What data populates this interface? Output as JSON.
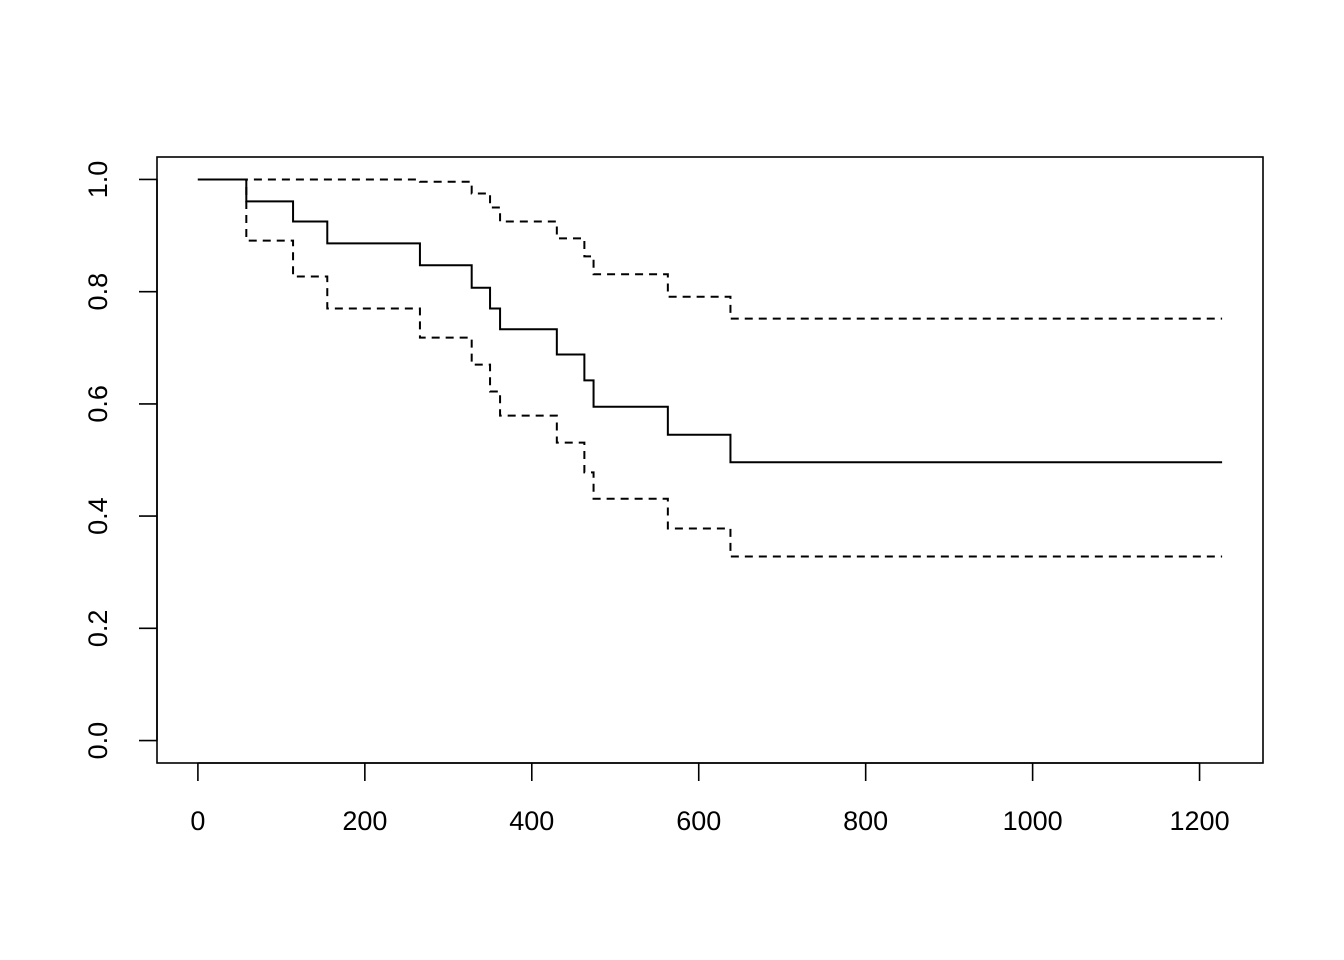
{
  "chart_data": {
    "type": "step",
    "x": [
      0,
      58,
      114,
      155,
      266,
      328,
      350,
      362,
      430,
      463,
      474,
      563,
      638,
      1227
    ],
    "series": [
      {
        "color": "#000000",
        "dashed": false,
        "values": [
          1,
          0.961,
          0.925,
          0.886,
          0.847,
          0.807,
          0.77,
          0.733,
          0.688,
          0.642,
          0.595,
          0.545,
          0.496,
          0.496
        ]
      },
      {
        "color": "#000000",
        "dashed": true,
        "values": [
          1,
          0.891,
          0.827,
          0.77,
          0.718,
          0.67,
          0.622,
          0.579,
          0.531,
          0.478,
          0.431,
          0.378,
          0.328,
          0.328
        ]
      },
      {
        "color": "#000000",
        "dashed": true,
        "values": [
          1,
          1,
          1,
          1,
          0.996,
          0.975,
          0.95,
          0.925,
          0.895,
          0.863,
          0.831,
          0.791,
          0.752,
          0.752
        ]
      }
    ],
    "xlim": [
      -49,
      1276
    ],
    "ylim": [
      -0.04,
      1.04
    ],
    "xticks": [
      0,
      200,
      400,
      600,
      800,
      1000,
      1200
    ],
    "yticks": [
      {
        "value": 0,
        "label": "0.0"
      },
      {
        "value": 0.2,
        "label": "0.2"
      },
      {
        "value": 0.4,
        "label": "0.4"
      },
      {
        "value": 0.6,
        "label": "0.6"
      },
      {
        "value": 0.8,
        "label": "0.8"
      },
      {
        "value": 1,
        "label": "1.0"
      }
    ],
    "grid": false
  }
}
